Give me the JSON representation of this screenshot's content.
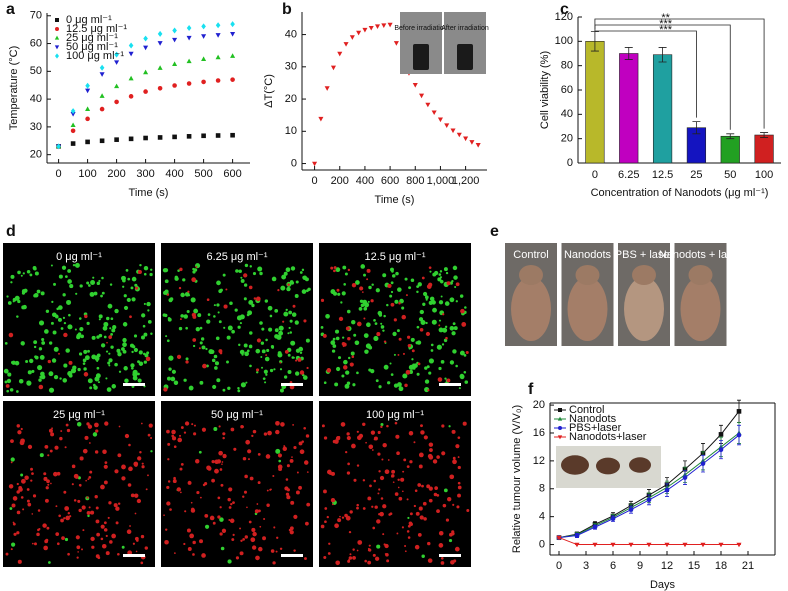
{
  "chart_data": [
    {
      "type": "scatter",
      "label": "a",
      "x_label": "Time (s)",
      "y_label": "Temperature (°C)",
      "x": [
        0,
        50,
        100,
        150,
        200,
        250,
        300,
        350,
        400,
        450,
        500,
        550,
        600
      ],
      "series": [
        {
          "name": "0 μg ml⁻¹",
          "color": "#111111",
          "marker": "square",
          "values": [
            23,
            24.0,
            24.6,
            25.0,
            25.4,
            25.7,
            26.0,
            26.2,
            26.4,
            26.6,
            26.8,
            26.9,
            27.0
          ]
        },
        {
          "name": "12.5 μg ml⁻¹",
          "color": "#e02020",
          "marker": "circle",
          "values": [
            23,
            28.6,
            32.9,
            36.4,
            39.0,
            41.0,
            42.7,
            43.9,
            44.9,
            45.6,
            46.2,
            46.7,
            47.0
          ]
        },
        {
          "name": "25 μg ml⁻¹",
          "color": "#22c022",
          "marker": "triangle-up",
          "values": [
            23,
            30.6,
            36.4,
            41.1,
            44.6,
            47.4,
            49.6,
            51.2,
            52.6,
            53.6,
            54.4,
            55.0,
            55.5
          ]
        },
        {
          "name": "50 μg ml⁻¹",
          "color": "#2020d0",
          "marker": "triangle-down",
          "values": [
            23,
            34.7,
            43.1,
            49.0,
            53.3,
            56.4,
            58.6,
            60.2,
            61.4,
            62.1,
            62.7,
            63.1,
            63.5
          ]
        },
        {
          "name": "100 μg ml⁻¹",
          "color": "#18e0f0",
          "marker": "diamond",
          "values": [
            23,
            35.7,
            44.8,
            51.3,
            56.0,
            59.3,
            61.8,
            63.5,
            64.7,
            65.6,
            66.2,
            66.6,
            67.0
          ]
        }
      ],
      "xlim": [
        -40,
        660
      ],
      "xticks": [
        0,
        100,
        200,
        300,
        400,
        500,
        600
      ],
      "ylim": [
        17,
        71
      ],
      "yticks": [
        20,
        30,
        40,
        50,
        60,
        70
      ],
      "legend": "top-left"
    },
    {
      "type": "scatter",
      "label": "b",
      "x_label": "Time (s)",
      "y_label": "ΔT(°C)",
      "inset_labels": [
        "Before irradiation",
        "After irradiation"
      ],
      "x": [
        0,
        50,
        100,
        150,
        200,
        250,
        300,
        350,
        400,
        450,
        500,
        550,
        600,
        650,
        700,
        750,
        800,
        850,
        900,
        950,
        1000,
        1050,
        1100,
        1150,
        1200,
        1250,
        1300
      ],
      "series": [
        {
          "color": "#e02020",
          "marker": "triangle-down",
          "values": [
            0,
            13.9,
            23.4,
            29.8,
            34.1,
            37.1,
            39.2,
            40.6,
            41.5,
            42.1,
            42.6,
            42.9,
            43.1,
            37.4,
            32.4,
            28.1,
            24.4,
            21.1,
            18.3,
            15.9,
            13.7,
            11.9,
            10.3,
            9.0,
            7.8,
            6.7,
            5.8
          ]
        }
      ],
      "xlim": [
        -100,
        1370
      ],
      "xticks": [
        0,
        200,
        400,
        600,
        800,
        {
          "value": 1000,
          "label": "1,000"
        },
        {
          "value": 1200,
          "label": "1,200"
        }
      ],
      "ylim": [
        -2,
        47
      ],
      "yticks": [
        0,
        10,
        20,
        30,
        40
      ]
    },
    {
      "type": "bar",
      "label": "c",
      "x_label": "Concentration of Nanodots (μg ml⁻¹)",
      "y_label": "Cell viability (%)",
      "categories": [
        "0",
        "6.25",
        "12.5",
        "25",
        "50",
        "100"
      ],
      "values": [
        100,
        90,
        89,
        29,
        22,
        23
      ],
      "errors": [
        8,
        5,
        6,
        5,
        2,
        2
      ],
      "colors": [
        "#b8b82a",
        "#c000c0",
        "#1fa0a0",
        "#1414c0",
        "#22a022",
        "#d02020"
      ],
      "annotations": [
        "***",
        "***",
        "**"
      ],
      "ylim": [
        0,
        120
      ],
      "yticks": [
        0,
        20,
        40,
        60,
        80,
        100,
        120
      ]
    },
    {
      "type": "line",
      "label": "f",
      "x_label": "Days",
      "y_label": "Relative tumour volume (V/V₀)",
      "x": [
        0,
        2,
        4,
        6,
        8,
        10,
        12,
        14,
        16,
        18,
        20
      ],
      "series": [
        {
          "name": "Control",
          "color": "#111111",
          "marker": "square",
          "values": [
            1,
            1.5,
            2.9,
            4.1,
            5.6,
            7.1,
            8.6,
            10.8,
            13.1,
            15.8,
            19.1
          ],
          "errors": [
            0.1,
            0.3,
            0.4,
            0.5,
            0.6,
            0.8,
            1.0,
            1.2,
            1.4,
            1.3,
            1.6
          ]
        },
        {
          "name": "Nanodots",
          "color": "#1f8a3a",
          "marker": "triangle-up",
          "values": [
            1,
            1.4,
            2.7,
            3.9,
            5.3,
            6.7,
            8.2,
            10.0,
            12.0,
            14.0,
            16.0
          ],
          "errors": [
            0.1,
            0.3,
            0.3,
            0.4,
            0.5,
            0.7,
            0.9,
            1.1,
            1.3,
            1.4,
            1.5
          ]
        },
        {
          "name": "PBS+laser",
          "color": "#2020d0",
          "marker": "circle",
          "values": [
            1,
            1.3,
            2.5,
            3.7,
            5.0,
            6.4,
            7.8,
            9.6,
            11.6,
            13.6,
            15.7
          ],
          "errors": [
            0.1,
            0.3,
            0.3,
            0.4,
            0.5,
            0.7,
            0.9,
            1.0,
            1.2,
            1.3,
            1.4
          ]
        },
        {
          "name": "Nanodots+laser",
          "color": "#e02020",
          "marker": "triangle-down",
          "values": [
            1,
            0,
            0,
            0,
            0,
            0,
            0,
            0,
            0,
            0,
            0
          ],
          "errors": [
            0.1,
            0,
            0,
            0,
            0,
            0,
            0,
            0,
            0,
            0,
            0
          ]
        }
      ],
      "xlim": [
        -1,
        24
      ],
      "xticks": [
        0,
        3,
        6,
        9,
        12,
        15,
        18,
        21
      ],
      "ylim": [
        -1.5,
        20.3
      ],
      "yticks": [
        0,
        4,
        8,
        12,
        16,
        20
      ],
      "legend": "top-left"
    }
  ],
  "panels": {
    "d": {
      "label": "d",
      "captions": [
        "0 μg ml⁻¹",
        "6.25 μg ml⁻¹",
        "12.5 μg ml⁻¹",
        "25 μg ml⁻¹",
        "50 μg ml⁻¹",
        "100 μg ml⁻¹"
      ]
    },
    "e": {
      "label": "e",
      "captions": [
        "Control",
        "Nanodots",
        "PBS + laser",
        "Nanodots + laser"
      ]
    }
  }
}
